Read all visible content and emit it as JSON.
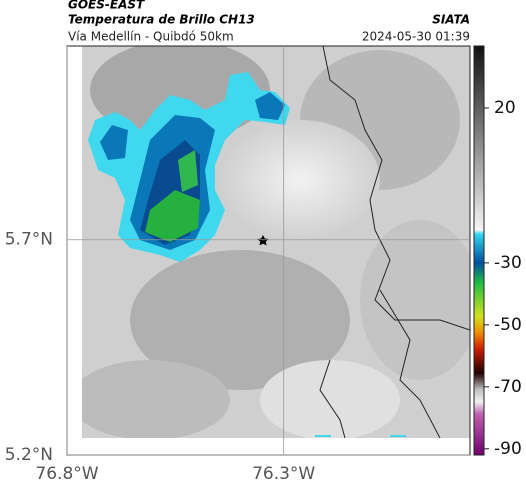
{
  "header": {
    "source": "GOES-EAST",
    "product": "Temperatura de Brillo CH13",
    "org": "SIATA",
    "route": "Vía Medellín - Quibdó 50km",
    "time": "2024-05-30 01:39"
  },
  "map": {
    "xlim": [
      -76.8,
      -75.87
    ],
    "ylim": [
      5.2,
      6.15
    ],
    "xticks": [
      {
        "value": -76.8,
        "label": "76.8°W"
      },
      {
        "value": -76.3,
        "label": "76.3°W"
      }
    ],
    "yticks": [
      {
        "value": 5.7,
        "label": "5.7°N"
      },
      {
        "value": 5.2,
        "label": "5.2°N"
      }
    ],
    "grid": true
  },
  "colorbar": {
    "lim": [
      -92,
      40
    ],
    "ticks": [
      20,
      -30,
      -50,
      -70,
      -90
    ]
  }
}
